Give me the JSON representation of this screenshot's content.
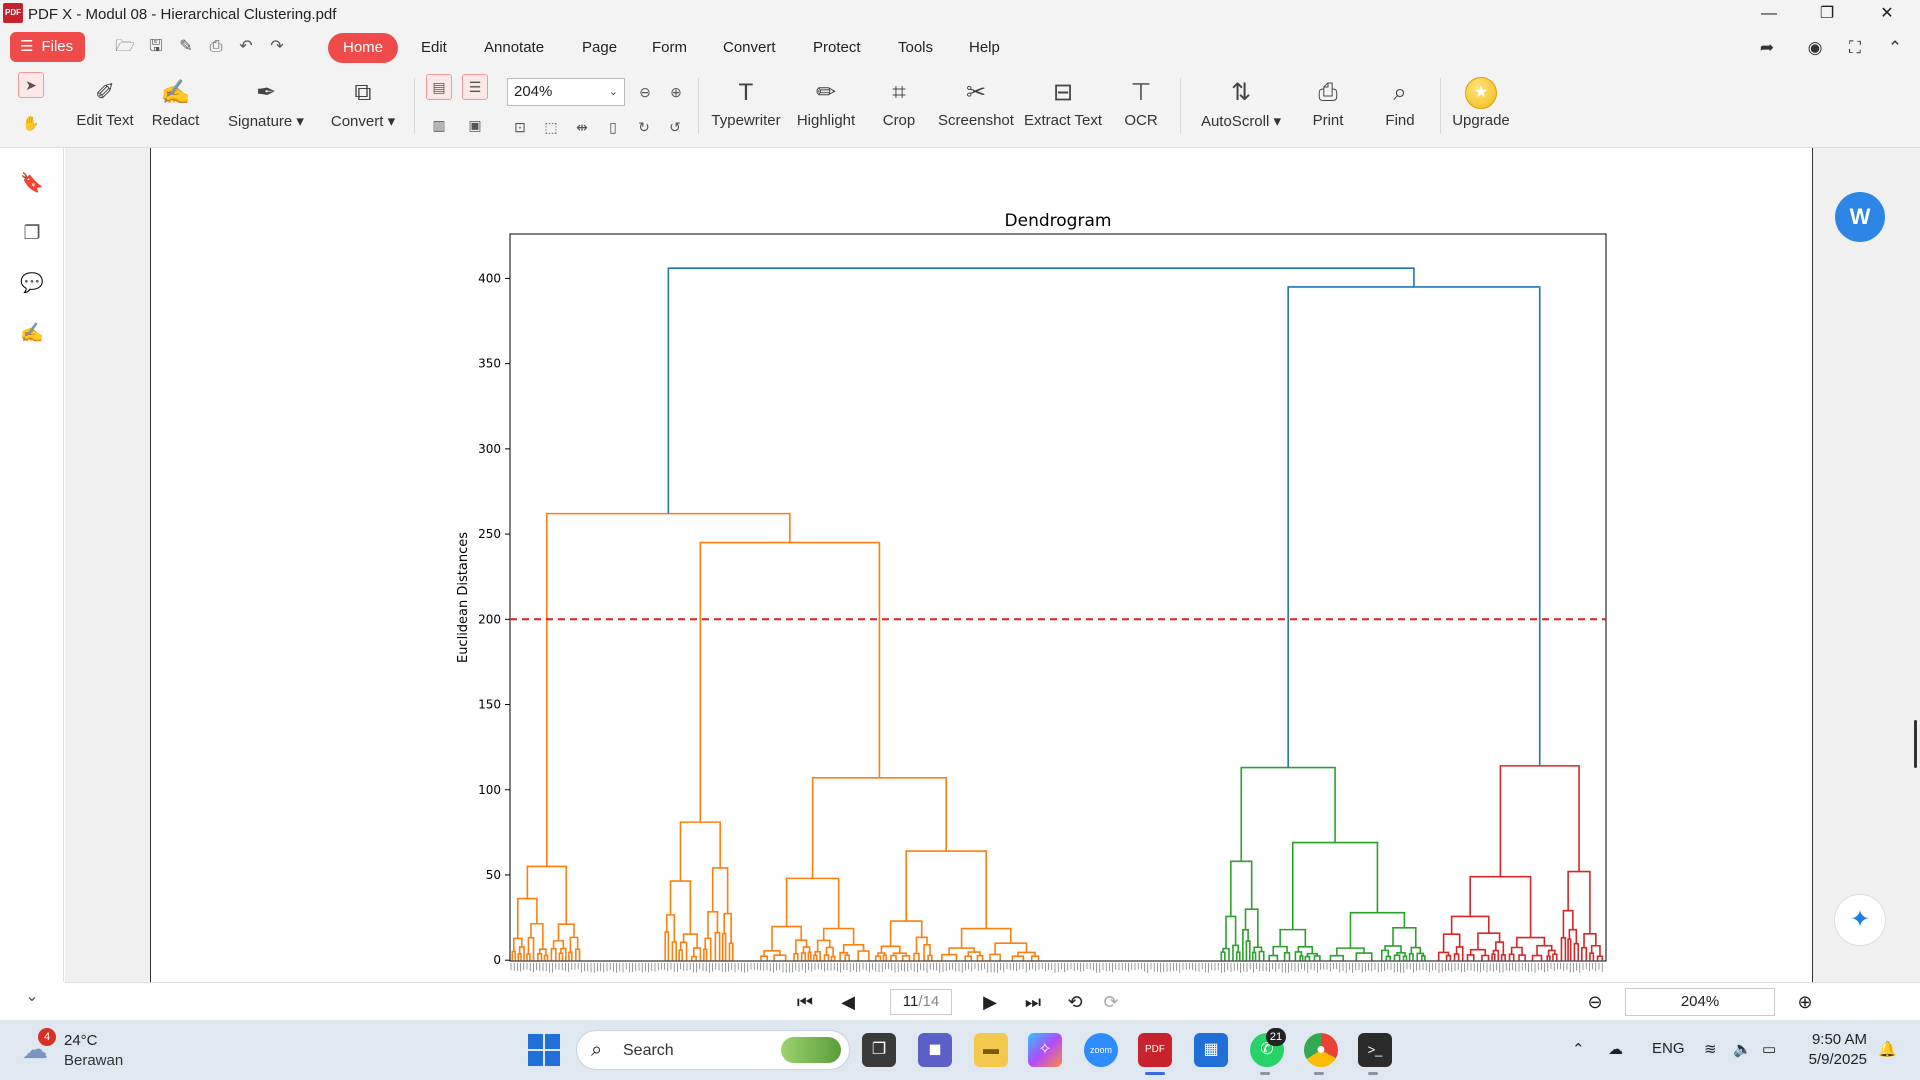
{
  "window": {
    "logo_text": "PDF",
    "title": "PDF X - Modul 08 - Hierarchical Clustering.pdf",
    "controls": {
      "minimize": "—",
      "maximize": "❐",
      "close": "✕"
    }
  },
  "menubar": {
    "files_label": "Files",
    "quick_icons": [
      "open-folder-icon",
      "save-icon",
      "save-as-icon",
      "print-icon",
      "undo-icon",
      "redo-icon"
    ],
    "items": [
      "Home",
      "Edit",
      "Annotate",
      "Page",
      "Form",
      "Convert",
      "Protect",
      "Tools",
      "Help"
    ],
    "active": "Home"
  },
  "ribbon": {
    "edit_text": "Edit Text",
    "redact": "Redact",
    "signature": "Signature",
    "convert": "Convert",
    "zoom_value": "204%",
    "typewriter": "Typewriter",
    "highlight": "Highlight",
    "crop": "Crop",
    "screenshot": "Screenshot",
    "extract_text": "Extract Text",
    "ocr": "OCR",
    "autoscroll": "AutoScroll",
    "print": "Print",
    "find": "Find",
    "upgrade": "Upgrade"
  },
  "colors": {
    "accent": "#ef4b4b",
    "cluster_blue": "#1f77b4",
    "cluster_orange": "#ff7f0e",
    "cluster_green": "#2ca02c",
    "cluster_red": "#d62728",
    "threshold_line": "#e01f1f"
  },
  "chart_data": {
    "type": "dendrogram",
    "title": "Dendrogram",
    "ylabel": "Euclidean Distances",
    "xlabel": "",
    "ylim": [
      0,
      425
    ],
    "yticks": [
      0,
      50,
      100,
      150,
      200,
      250,
      300,
      350,
      400
    ],
    "threshold": 200,
    "threshold_style": "dashed",
    "root": {
      "height": 406,
      "children": [
        "left_top",
        "right_top"
      ],
      "color": "blue"
    },
    "merges": [
      {
        "name": "left_top",
        "height": 262,
        "color": "orange"
      },
      {
        "name": "right_top",
        "height": 395,
        "color": "blue"
      },
      {
        "name": "orange_a",
        "height": 55,
        "color": "orange"
      },
      {
        "name": "orange_bcd",
        "height": 245,
        "color": "orange"
      },
      {
        "name": "orange_b",
        "height": 81,
        "color": "orange"
      },
      {
        "name": "orange_cd",
        "height": 107,
        "color": "orange"
      },
      {
        "name": "orange_c",
        "height": 48,
        "color": "orange"
      },
      {
        "name": "orange_d",
        "height": 64,
        "color": "orange"
      },
      {
        "name": "green",
        "height": 113,
        "color": "green"
      },
      {
        "name": "red",
        "height": 114,
        "color": "red"
      }
    ],
    "clusters": [
      {
        "color": "orange",
        "top_height": 262
      },
      {
        "color": "green",
        "top_height": 113
      },
      {
        "color": "red",
        "top_height": 114
      }
    ]
  },
  "bottombar": {
    "current_page": "11",
    "total_pages": "/14",
    "zoom": "204%"
  },
  "taskbar": {
    "weather_badge": "4",
    "temperature": "24°C",
    "weather_desc": "Berawan",
    "search_label": "Search",
    "whatsapp_badge": "21",
    "language": "ENG",
    "time": "9:50 AM",
    "date": "5/9/2025"
  }
}
